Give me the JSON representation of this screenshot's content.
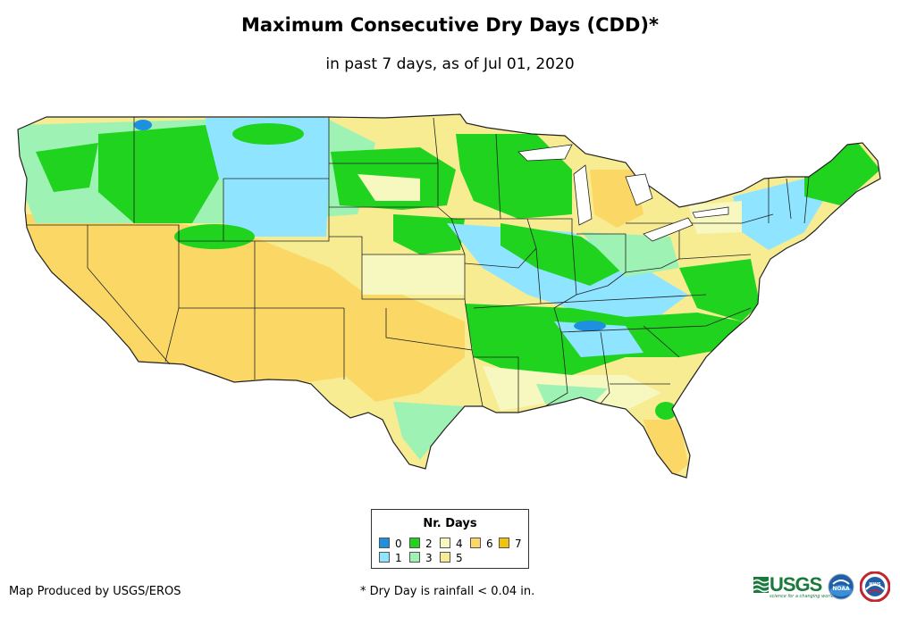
{
  "header": {
    "title": "Maximum Consecutive Dry Days (CDD)*",
    "subtitle": "in past 7 days, as of Jul 01, 2020"
  },
  "map": {
    "region": "Contiguous United States",
    "layer": "consecutive-dry-days"
  },
  "colors": {
    "d0": "#1e90e0",
    "d1": "#8fe5ff",
    "d2": "#1fd31f",
    "d3": "#9ef2b4",
    "d4": "#f7f7c0",
    "d5": "#f7ec92",
    "d6": "#fbd866",
    "d7": "#f2c20c",
    "border": "#222222",
    "usgs_green": "#1a7a3c"
  },
  "legend": {
    "title": "Nr. Days",
    "items": [
      {
        "label": "0",
        "color": "#1e90e0"
      },
      {
        "label": "1",
        "color": "#8fe5ff"
      },
      {
        "label": "2",
        "color": "#1fd31f"
      },
      {
        "label": "3",
        "color": "#9ef2b4"
      },
      {
        "label": "4",
        "color": "#f7f7c0"
      },
      {
        "label": "5",
        "color": "#f7ec92"
      },
      {
        "label": "6",
        "color": "#fbd866"
      },
      {
        "label": "7",
        "color": "#f2c20c"
      }
    ]
  },
  "footer": {
    "credit": "Map Produced by USGS/EROS",
    "footnote": "* Dry Day is rainfall < 0.04 in."
  },
  "logos": {
    "usgs_text": "USGS",
    "usgs_tagline": "science for a changing world",
    "noaa_text": "NOAA",
    "nws_text": "NWS"
  }
}
